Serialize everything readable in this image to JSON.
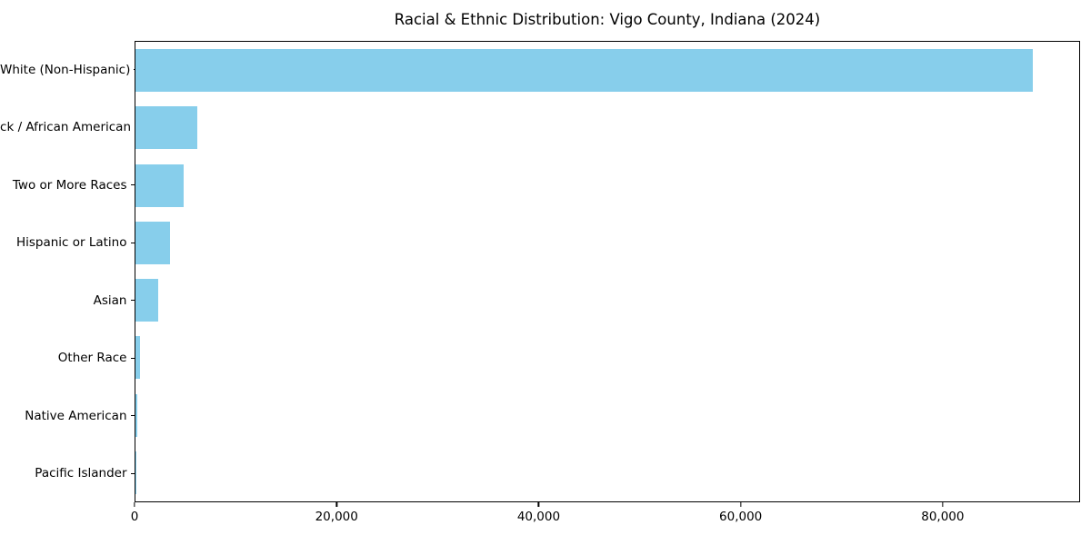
{
  "title": "Racial & Ethnic Distribution: Vigo County, Indiana (2024)",
  "colors": {
    "bar": "#87CEEB",
    "text": "#000000",
    "axis_border": "#000000",
    "background": "#ffffff"
  },
  "chart_data": {
    "type": "bar",
    "orientation": "horizontal",
    "title": "Racial & Ethnic Distribution: Vigo County, Indiana (2024)",
    "xlabel": "",
    "ylabel": "",
    "categories": [
      "White (Non-Hispanic)",
      "Black / African American",
      "Two or More Races",
      "Hispanic or Latino",
      "Asian",
      "Other Race",
      "Native American",
      "Pacific Islander"
    ],
    "values": [
      89000,
      6100,
      4800,
      3400,
      2250,
      450,
      150,
      40
    ],
    "xlim": [
      0,
      93600
    ],
    "xticks": [
      0,
      20000,
      40000,
      60000,
      80000
    ],
    "xtick_labels": [
      "0",
      "20,000",
      "40,000",
      "60,000",
      "80,000"
    ],
    "bar_color": "#87CEEB",
    "grid": false,
    "legend": null
  }
}
